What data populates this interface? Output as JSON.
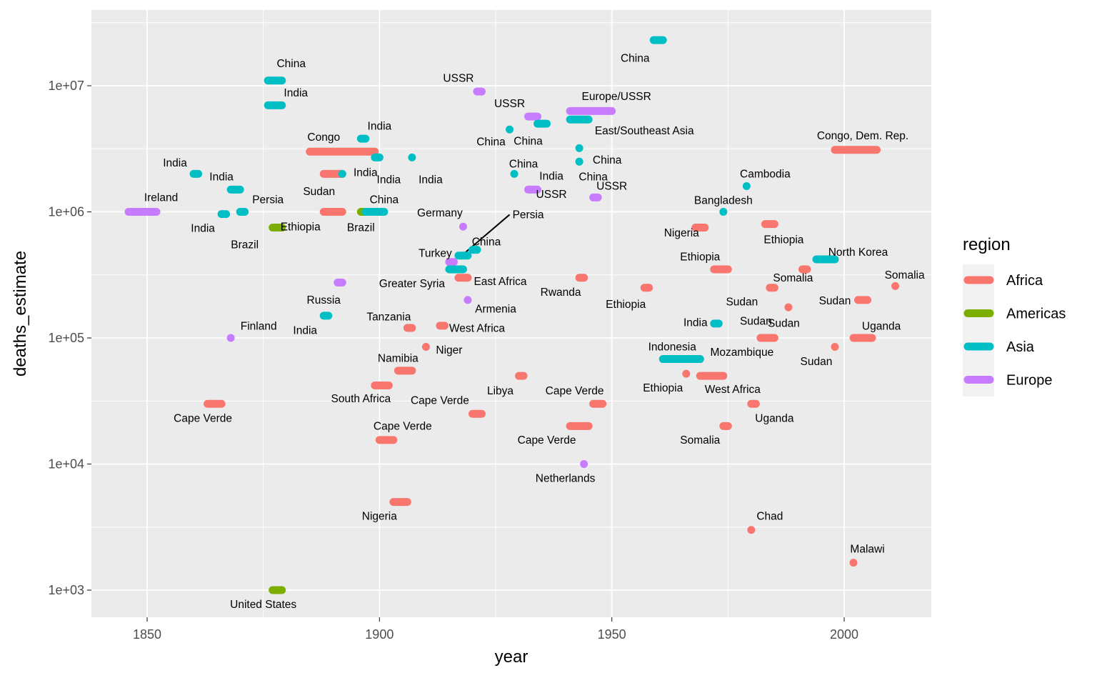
{
  "chart_data": {
    "type": "scatter",
    "xlabel": "year",
    "ylabel": "deaths_estimate",
    "x_ticks": [
      "1850",
      "1900",
      "1950",
      "2000"
    ],
    "y_ticks": [
      "1e+03",
      "1e+04",
      "1e+05",
      "1e+06",
      "1e+07"
    ],
    "xlim": [
      1838,
      2019
    ],
    "ylim": [
      600,
      33000000
    ],
    "y_scale": "log10",
    "grid": true,
    "legend": {
      "title": "region",
      "position": "right",
      "entries": [
        {
          "name": "Africa",
          "color": "#F8766D"
        },
        {
          "name": "Americas",
          "color": "#7CAE00"
        },
        {
          "name": "Asia",
          "color": "#00BFC4"
        },
        {
          "name": "Europe",
          "color": "#C77CFF"
        }
      ]
    },
    "points": [
      {
        "label": "China",
        "region": "Asia",
        "start": 1959,
        "end": 1961,
        "deaths": 23000000,
        "lx": 1955,
        "ly": 16500000
      },
      {
        "label": "China",
        "region": "Asia",
        "start": 1876,
        "end": 1879,
        "deaths": 11000000,
        "lx": 1881,
        "ly": 15000000
      },
      {
        "label": "India",
        "region": "Asia",
        "start": 1876,
        "end": 1879,
        "deaths": 7000000,
        "lx": 1882,
        "ly": 8800000
      },
      {
        "label": "USSR",
        "region": "Europe",
        "start": 1921,
        "end": 1922,
        "deaths": 9000000,
        "lx": 1917,
        "ly": 11500000
      },
      {
        "label": "USSR",
        "region": "Europe",
        "start": 1932,
        "end": 1934,
        "deaths": 5700000,
        "lx": 1928,
        "ly": 7200000
      },
      {
        "label": "Europe/USSR",
        "region": "Europe",
        "start": 1941,
        "end": 1950,
        "deaths": 6300000,
        "lx": 1951,
        "ly": 8200000
      },
      {
        "label": "East/Southeast Asia",
        "region": "Asia",
        "start": 1941,
        "end": 1945,
        "deaths": 5400000,
        "lx": 1957,
        "ly": 4400000
      },
      {
        "label": "China",
        "region": "Asia",
        "start": 1934,
        "end": 1936,
        "deaths": 5000000,
        "lx": 1932,
        "ly": 3650000
      },
      {
        "label": "China",
        "region": "Asia",
        "start": 1928,
        "end": 1928,
        "deaths": 4500000,
        "lx": 1924,
        "ly": 3600000
      },
      {
        "label": "India",
        "region": "Asia",
        "start": 1896,
        "end": 1897,
        "deaths": 3800000,
        "lx": 1900,
        "ly": 4800000
      },
      {
        "label": "Congo",
        "region": "Africa",
        "start": 1885,
        "end": 1899,
        "deaths": 3000000,
        "lx": 1888,
        "ly": 3900000
      },
      {
        "label": "Congo, Dem. Rep.",
        "region": "Africa",
        "start": 1998,
        "end": 2007,
        "deaths": 3100000,
        "lx": 2004,
        "ly": 4000000
      },
      {
        "label": "China",
        "region": "Asia",
        "start": 1943,
        "end": 1943,
        "deaths": 3200000,
        "lx": 1949,
        "ly": 2580000
      },
      {
        "label": "India",
        "region": "Asia",
        "start": 1899,
        "end": 1900,
        "deaths": 2700000,
        "lx": 1902,
        "ly": 1800000
      },
      {
        "label": "India",
        "region": "Asia",
        "start": 1907,
        "end": 1907,
        "deaths": 2700000,
        "lx": 1911,
        "ly": 1800000
      },
      {
        "label": "China",
        "region": "Asia",
        "start": 1943,
        "end": 1943,
        "deaths": 2500000,
        "lx": 1931,
        "ly": 2400000
      },
      {
        "label": "India",
        "region": "Asia",
        "start": 1943,
        "end": 1943,
        "deaths": 2500000,
        "lx": 1937,
        "ly": 1920000
      },
      {
        "label": "China",
        "region": "Asia",
        "start": 1929,
        "end": 1929,
        "deaths": 2000000,
        "lx": 1946,
        "ly": 1900000
      },
      {
        "label": "India",
        "region": "Asia",
        "start": 1860,
        "end": 1861,
        "deaths": 2000000,
        "lx": 1856,
        "ly": 2450000
      },
      {
        "label": "Sudan",
        "region": "Africa",
        "start": 1888,
        "end": 1892,
        "deaths": 2000000,
        "lx": 1887,
        "ly": 1450000
      },
      {
        "label": "India",
        "region": "Asia",
        "start": 1892,
        "end": 1892,
        "deaths": 2000000,
        "lx": 1897,
        "ly": 2050000
      },
      {
        "label": "India",
        "region": "Asia",
        "start": 1868,
        "end": 1870,
        "deaths": 1500000,
        "lx": 1866,
        "ly": 1900000
      },
      {
        "label": "USSR",
        "region": "Europe",
        "start": 1932,
        "end": 1934,
        "deaths": 1500000,
        "lx": 1937,
        "ly": 1380000
      },
      {
        "label": "Cambodia",
        "region": "Asia",
        "start": 1979,
        "end": 1979,
        "deaths": 1600000,
        "lx": 1983,
        "ly": 2000000
      },
      {
        "label": "USSR",
        "region": "Europe",
        "start": 1946,
        "end": 1947,
        "deaths": 1300000,
        "lx": 1950,
        "ly": 1600000
      },
      {
        "label": "Ireland",
        "region": "Europe",
        "start": 1846,
        "end": 1852,
        "deaths": 1000000,
        "lx": 1853,
        "ly": 1300000
      },
      {
        "label": "India",
        "region": "Asia",
        "start": 1866,
        "end": 1867,
        "deaths": 960000,
        "lx": 1862,
        "ly": 740000
      },
      {
        "label": "Persia",
        "region": "Asia",
        "start": 1870,
        "end": 1871,
        "deaths": 1000000,
        "lx": 1876,
        "ly": 1250000
      },
      {
        "label": "Brazil",
        "region": "Americas",
        "start": 1877,
        "end": 1879,
        "deaths": 750000,
        "lx": 1871,
        "ly": 550000
      },
      {
        "label": "Ethiopia",
        "region": "Africa",
        "start": 1888,
        "end": 1892,
        "deaths": 1000000,
        "lx": 1883,
        "ly": 760000
      },
      {
        "label": "Brazil",
        "region": "Americas",
        "start": 1896,
        "end": 1897,
        "deaths": 1000000,
        "lx": 1896,
        "ly": 750000
      },
      {
        "label": "China",
        "region": "Asia",
        "start": 1897,
        "end": 1901,
        "deaths": 1000000,
        "lx": 1901,
        "ly": 1250000
      },
      {
        "label": "Bangladesh",
        "region": "Asia",
        "start": 1974,
        "end": 1974,
        "deaths": 1000000,
        "lx": 1974,
        "ly": 1230000
      },
      {
        "label": "Germany",
        "region": "Europe",
        "start": 1918,
        "end": 1918,
        "deaths": 763000,
        "lx": 1913,
        "ly": 980000
      },
      {
        "label": "Persia",
        "region": "Asia",
        "start": 1917,
        "end": 1919,
        "deaths": 450000,
        "lx": 1932,
        "ly": 950000
      },
      {
        "label": "Nigeria",
        "region": "Africa",
        "start": 1968,
        "end": 1970,
        "deaths": 750000,
        "lx": 1965,
        "ly": 680000
      },
      {
        "label": "Ethiopia",
        "region": "Africa",
        "start": 1983,
        "end": 1985,
        "deaths": 800000,
        "lx": 1987,
        "ly": 600000
      },
      {
        "label": "China",
        "region": "Asia",
        "start": 1920,
        "end": 1921,
        "deaths": 500000,
        "lx": 1923,
        "ly": 580000
      },
      {
        "label": "Turkey",
        "region": "Europe",
        "start": 1915,
        "end": 1916,
        "deaths": 400000,
        "lx": 1912,
        "ly": 470000
      },
      {
        "label": "Ethiopia",
        "region": "Africa",
        "start": 1972,
        "end": 1975,
        "deaths": 350000,
        "lx": 1969,
        "ly": 440000
      },
      {
        "label": "North Korea",
        "region": "Asia",
        "start": 1994,
        "end": 1998,
        "deaths": 420000,
        "lx": 2003,
        "ly": 480000
      },
      {
        "label": "Greater Syria",
        "region": "Asia",
        "start": 1915,
        "end": 1918,
        "deaths": 350000,
        "lx": 1907,
        "ly": 270000
      },
      {
        "label": "East Africa",
        "region": "Africa",
        "start": 1917,
        "end": 1919,
        "deaths": 300000,
        "lx": 1926,
        "ly": 280000
      },
      {
        "label": "Somalia",
        "region": "Africa",
        "start": 1991,
        "end": 1992,
        "deaths": 350000,
        "lx": 1989,
        "ly": 300000
      },
      {
        "label": "Somalia",
        "region": "Africa",
        "start": 2011,
        "end": 2011,
        "deaths": 258000,
        "lx": 2013,
        "ly": 315000
      },
      {
        "label": "Russia",
        "region": "Europe",
        "start": 1891,
        "end": 1892,
        "deaths": 275000,
        "lx": 1888,
        "ly": 200000
      },
      {
        "label": "Rwanda",
        "region": "Africa",
        "start": 1943,
        "end": 1944,
        "deaths": 300000,
        "lx": 1939,
        "ly": 230000
      },
      {
        "label": "Ethiopia",
        "region": "Africa",
        "start": 1957,
        "end": 1958,
        "deaths": 250000,
        "lx": 1953,
        "ly": 185000
      },
      {
        "label": "Sudan",
        "region": "Africa",
        "start": 1984,
        "end": 1985,
        "deaths": 250000,
        "lx": 1978,
        "ly": 193000
      },
      {
        "label": "Armenia",
        "region": "Europe",
        "start": 1919,
        "end": 1919,
        "deaths": 200000,
        "lx": 1925,
        "ly": 170000
      },
      {
        "label": "Sudan",
        "region": "Africa",
        "start": 1988,
        "end": 1988,
        "deaths": 175000,
        "lx": 1981,
        "ly": 136000
      },
      {
        "label": "Sudan",
        "region": "Africa",
        "start": 2003,
        "end": 2005,
        "deaths": 200000,
        "lx": 1998,
        "ly": 197000
      },
      {
        "label": "India",
        "region": "Asia",
        "start": 1888,
        "end": 1889,
        "deaths": 150000,
        "lx": 1884,
        "ly": 115000
      },
      {
        "label": "Tanzania",
        "region": "Africa",
        "start": 1906,
        "end": 1907,
        "deaths": 120000,
        "lx": 1902,
        "ly": 147000
      },
      {
        "label": "West Africa",
        "region": "Africa",
        "start": 1913,
        "end": 1914,
        "deaths": 125000,
        "lx": 1921,
        "ly": 119000
      },
      {
        "label": "India",
        "region": "Asia",
        "start": 1972,
        "end": 1973,
        "deaths": 130000,
        "lx": 1968,
        "ly": 132000
      },
      {
        "label": "Sudan",
        "region": "Africa",
        "start": 1982,
        "end": 1985,
        "deaths": 100000,
        "lx": 1987,
        "ly": 131000
      },
      {
        "label": "Uganda",
        "region": "Africa",
        "start": 2002,
        "end": 2006,
        "deaths": 100000,
        "lx": 2008,
        "ly": 124000
      },
      {
        "label": "Finland",
        "region": "Europe",
        "start": 1868,
        "end": 1868,
        "deaths": 100000,
        "lx": 1874,
        "ly": 124000
      },
      {
        "label": "Niger",
        "region": "Africa",
        "start": 1910,
        "end": 1910,
        "deaths": 85000,
        "lx": 1915,
        "ly": 80000
      },
      {
        "label": "Mozambique",
        "region": "Africa",
        "start": 1983,
        "end": 1983,
        "deaths": 100000,
        "lx": 1978,
        "ly": 77000
      },
      {
        "label": "Sudan",
        "region": "Africa",
        "start": 1998,
        "end": 1998,
        "deaths": 85000,
        "lx": 1994,
        "ly": 65000
      },
      {
        "label": "Indonesia",
        "region": "Asia",
        "start": 1961,
        "end": 1969,
        "deaths": 68000,
        "lx": 1963,
        "ly": 85000
      },
      {
        "label": "Namibia",
        "region": "Africa",
        "start": 1904,
        "end": 1907,
        "deaths": 55000,
        "lx": 1904,
        "ly": 69000
      },
      {
        "label": "Ethiopia",
        "region": "Africa",
        "start": 1966,
        "end": 1966,
        "deaths": 52000,
        "lx": 1961,
        "ly": 40000
      },
      {
        "label": "West Africa",
        "region": "Africa",
        "start": 1969,
        "end": 1974,
        "deaths": 50000,
        "lx": 1976,
        "ly": 39000
      },
      {
        "label": "Libya",
        "region": "Africa",
        "start": 1930,
        "end": 1931,
        "deaths": 50000,
        "lx": 1926,
        "ly": 38000
      },
      {
        "label": "South Africa",
        "region": "Africa",
        "start": 1899,
        "end": 1902,
        "deaths": 42000,
        "lx": 1896,
        "ly": 33000
      },
      {
        "label": "Cape Verde",
        "region": "Africa",
        "start": 1863,
        "end": 1866,
        "deaths": 30000,
        "lx": 1862,
        "ly": 23000
      },
      {
        "label": "Cape Verde",
        "region": "Africa",
        "start": 1946,
        "end": 1948,
        "deaths": 30000,
        "lx": 1942,
        "ly": 38000
      },
      {
        "label": "Cape Verde",
        "region": "Africa",
        "start": 1920,
        "end": 1922,
        "deaths": 25000,
        "lx": 1913,
        "ly": 32000
      },
      {
        "label": "Uganda",
        "region": "Africa",
        "start": 1980,
        "end": 1981,
        "deaths": 30000,
        "lx": 1985,
        "ly": 23000
      },
      {
        "label": "Cape Verde",
        "region": "Africa",
        "start": 1900,
        "end": 1903,
        "deaths": 15500,
        "lx": 1905,
        "ly": 20000
      },
      {
        "label": "Cape Verde",
        "region": "Africa",
        "start": 1941,
        "end": 1945,
        "deaths": 20000,
        "lx": 1936,
        "ly": 15500
      },
      {
        "label": "Somalia",
        "region": "Africa",
        "start": 1974,
        "end": 1975,
        "deaths": 20000,
        "lx": 1969,
        "ly": 15500
      },
      {
        "label": "Netherlands",
        "region": "Europe",
        "start": 1944,
        "end": 1944,
        "deaths": 10000,
        "lx": 1940,
        "ly": 7700
      },
      {
        "label": "Nigeria",
        "region": "Africa",
        "start": 1903,
        "end": 1906,
        "deaths": 5000,
        "lx": 1900,
        "ly": 3850
      },
      {
        "label": "Chad",
        "region": "Africa",
        "start": 1980,
        "end": 1980,
        "deaths": 3000,
        "lx": 1984,
        "ly": 3850
      },
      {
        "label": "Malawi",
        "region": "Africa",
        "start": 2002,
        "end": 2002,
        "deaths": 1650,
        "lx": 2005,
        "ly": 2120
      },
      {
        "label": "United States",
        "region": "Americas",
        "start": 1877,
        "end": 1879,
        "deaths": 1000,
        "lx": 1875,
        "ly": 770
      }
    ],
    "connector": {
      "x1": 1918,
      "y1": 460000,
      "x2": 1928,
      "y2": 950000
    }
  }
}
